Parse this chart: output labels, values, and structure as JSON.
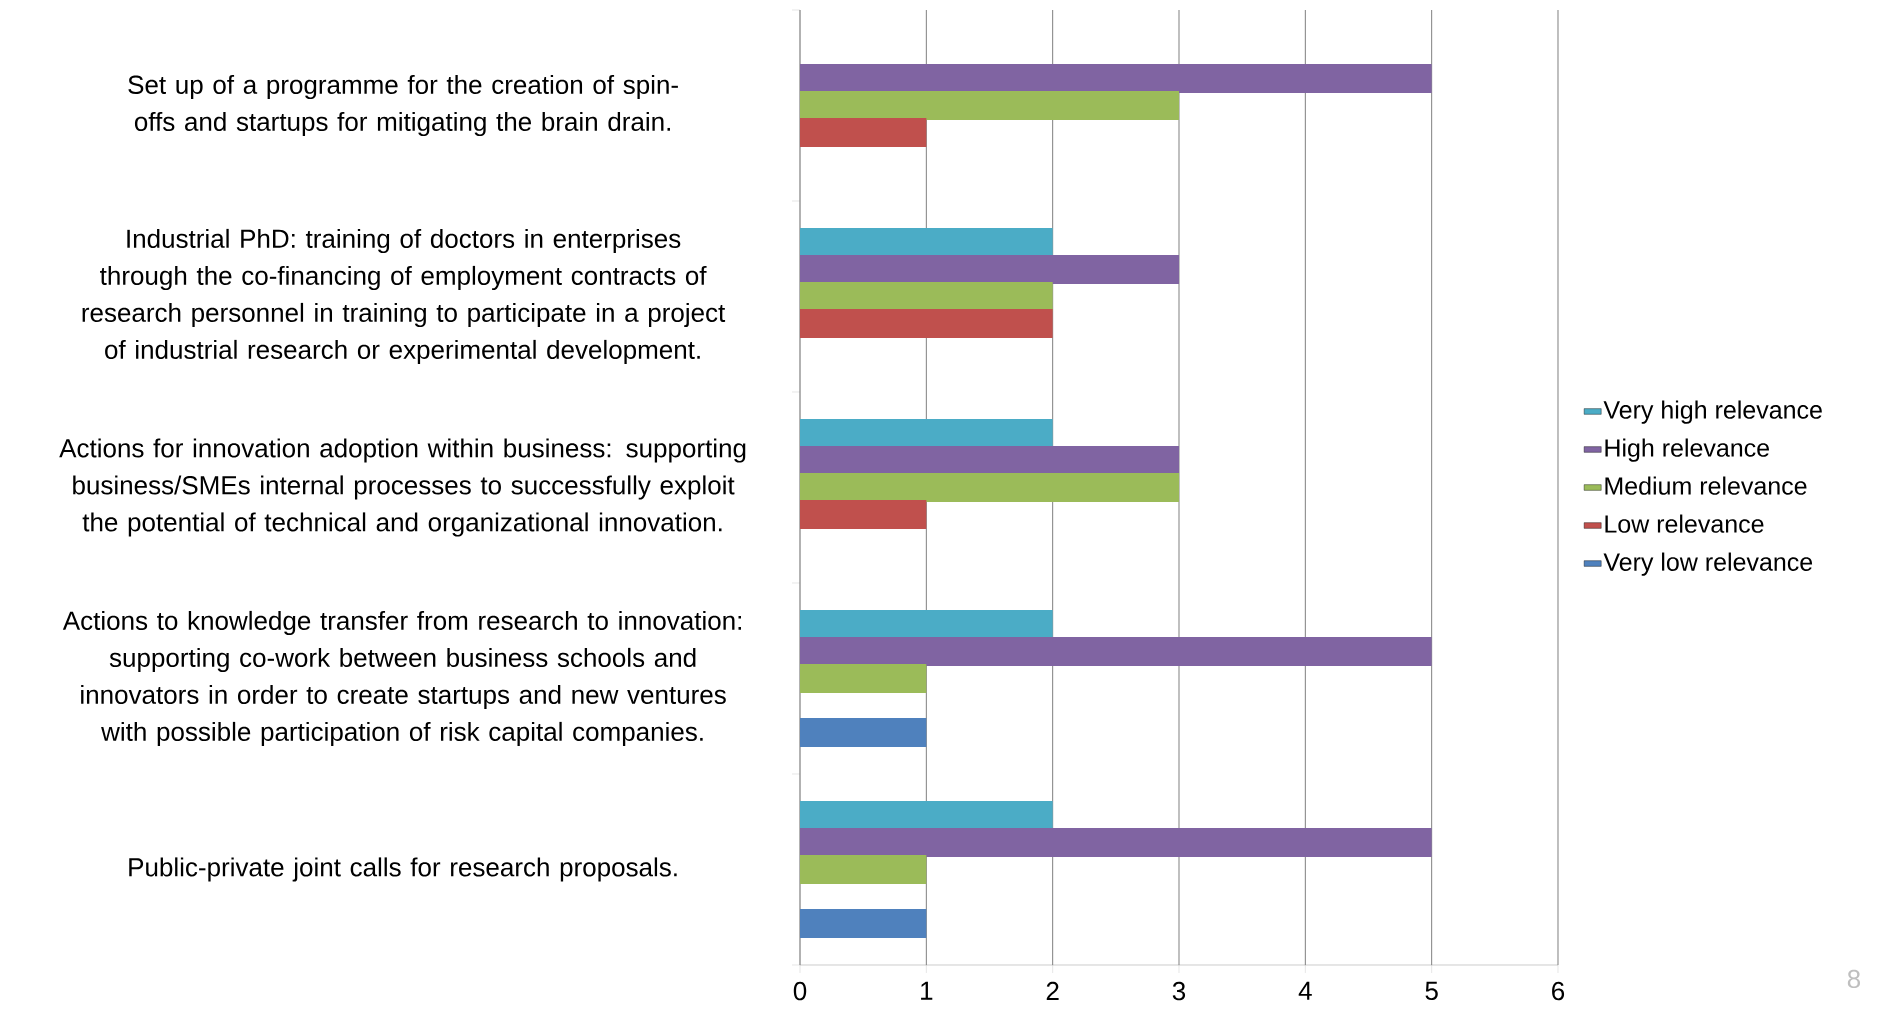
{
  "chart_data": {
    "type": "bar",
    "orientation": "horizontal",
    "categories": [
      "Set up of a programme for the creation of spin-offs and startups for mitigating the brain drain.",
      "Industrial PhD: training of doctors in enterprises through the co-financing of employment contracts of research personnel in training to participate in a project of industrial research or experimental development.",
      "Actions for innovation adoption within business: supporting business/SMEs internal processes to successfully exploit the potential of technical and organizational innovation.",
      "Actions to knowledge transfer from research to innovation: supporting co-work between business schools and innovators in order to create startups and new ventures with possible participation of risk capital companies.",
      "Public-private joint calls for research proposals."
    ],
    "series": [
      {
        "name": "Very high relevance",
        "color": "#4bacc6",
        "values": [
          null,
          2,
          2,
          2,
          2
        ]
      },
      {
        "name": "High relevance",
        "color": "#8064a2",
        "values": [
          5,
          3,
          3,
          5,
          5
        ]
      },
      {
        "name": "Medium relevance",
        "color": "#9bbb59",
        "values": [
          3,
          2,
          3,
          1,
          1
        ]
      },
      {
        "name": "Low relevance",
        "color": "#c0504d",
        "values": [
          1,
          2,
          1,
          null,
          null
        ]
      },
      {
        "name": "Very low relevance",
        "color": "#4f81bd",
        "values": [
          null,
          null,
          null,
          1,
          1
        ]
      }
    ],
    "xlim": [
      0,
      6
    ],
    "xticks": [
      0,
      1,
      2,
      3,
      4,
      5,
      6
    ],
    "grid": "x",
    "legend": "right",
    "annotations": [
      "8"
    ]
  }
}
